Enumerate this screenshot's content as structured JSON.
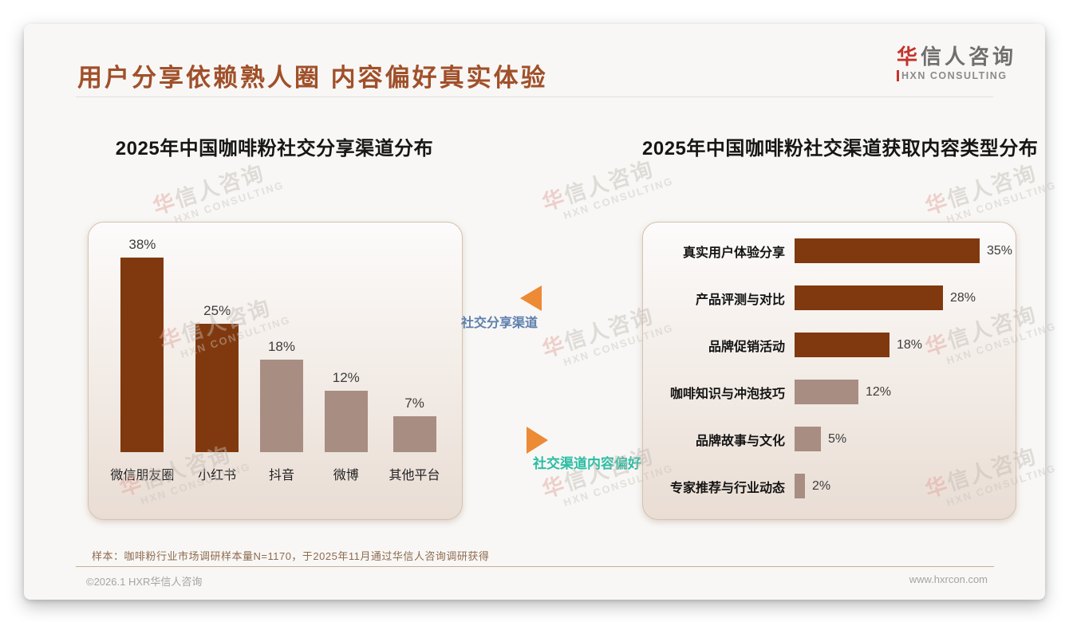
{
  "header": {
    "title": "用户分享依赖熟人圈 内容偏好真实体验",
    "logo": {
      "cn_first": "华",
      "cn_rest": "信人咨询",
      "en": "HXN CONSULTING",
      "accent_color": "#c2342c"
    }
  },
  "watermark": {
    "cn_first": "华",
    "cn_rest": "信人咨询",
    "en": "HXN CONSULTING"
  },
  "middle": {
    "label1": "社交分享渠道",
    "label1_color": "#5d7fae",
    "label2": "社交渠道内容偏好",
    "label2_color": "#2abda2",
    "arrow_color": "#ec8a35"
  },
  "chart_data": [
    {
      "type": "bar",
      "orientation": "vertical",
      "title": "2025年中国咖啡粉社交分享渠道分布",
      "categories": [
        "微信朋友圈",
        "小红书",
        "抖音",
        "微博",
        "其他平台"
      ],
      "values": [
        38,
        25,
        18,
        12,
        7
      ],
      "value_labels": [
        "38%",
        "25%",
        "18%",
        "12%",
        "7%"
      ],
      "unit": "%",
      "bar_colors": [
        "#80390e",
        "#80390e",
        "#a88d82",
        "#a88d82",
        "#a88d82"
      ],
      "grid": false,
      "axis_shown": false
    },
    {
      "type": "bar",
      "orientation": "horizontal",
      "title": "2025年中国咖啡粉社交渠道获取内容类型分布",
      "categories": [
        "真实用户体验分享",
        "产品评测与对比",
        "品牌促销活动",
        "咖啡知识与冲泡技巧",
        "品牌故事与文化",
        "专家推荐与行业动态"
      ],
      "values": [
        35,
        28,
        18,
        12,
        5,
        2
      ],
      "value_labels": [
        "35%",
        "28%",
        "18%",
        "12%",
        "5%",
        "2%"
      ],
      "unit": "%",
      "bar_colors": [
        "#80390e",
        "#80390e",
        "#80390e",
        "#a88d82",
        "#a88d82",
        "#a88d82"
      ],
      "grid": false,
      "axis_shown": false
    }
  ],
  "footnote": "样本：咖啡粉行业市场调研样本量N=1170，于2025年11月通过华信人咨询调研获得",
  "footer": {
    "copyright": "©2026.1 HXR华信人咨询",
    "website": "www.hxrcon.com"
  }
}
